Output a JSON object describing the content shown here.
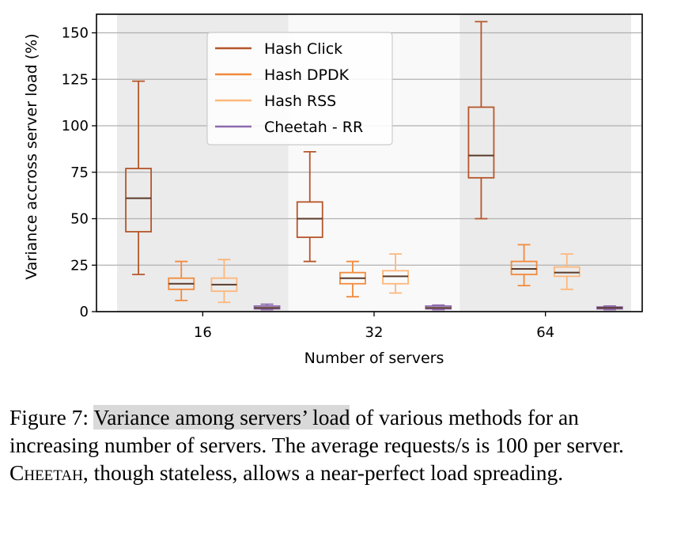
{
  "chart_data": {
    "type": "box",
    "xlabel": "Number of servers",
    "ylabel": "Variance accross server load (%)",
    "categories": [
      "16",
      "32",
      "64"
    ],
    "ylim": [
      0,
      160
    ],
    "yticks": [
      0,
      25,
      50,
      75,
      100,
      125,
      150
    ],
    "grid": "horizontal",
    "legend_position": "top-left",
    "series": [
      {
        "name": "Hash Click",
        "color": "#b5562a",
        "boxes": [
          {
            "min": 20,
            "q1": 43,
            "median": 61,
            "q3": 77,
            "max": 124
          },
          {
            "min": 27,
            "q1": 40,
            "median": 50,
            "q3": 59,
            "max": 86
          },
          {
            "min": 50,
            "q1": 72,
            "median": 84,
            "q3": 110,
            "max": 156
          }
        ]
      },
      {
        "name": "Hash DPDK",
        "color": "#f28a3c",
        "boxes": [
          {
            "min": 6,
            "q1": 12,
            "median": 15,
            "q3": 18,
            "max": 27
          },
          {
            "min": 8,
            "q1": 15,
            "median": 18,
            "q3": 21,
            "max": 27
          },
          {
            "min": 14,
            "q1": 20,
            "median": 23,
            "q3": 27,
            "max": 36
          }
        ]
      },
      {
        "name": "Hash RSS",
        "color": "#fdb77a",
        "boxes": [
          {
            "min": 5,
            "q1": 11,
            "median": 14.5,
            "q3": 18,
            "max": 28
          },
          {
            "min": 10,
            "q1": 15,
            "median": 19,
            "q3": 22,
            "max": 31
          },
          {
            "min": 12,
            "q1": 19,
            "median": 21,
            "q3": 24,
            "max": 31
          }
        ]
      },
      {
        "name": "Cheetah - RR",
        "color": "#8e6aae",
        "boxes": [
          {
            "min": 1,
            "q1": 1.5,
            "median": 2,
            "q3": 3,
            "max": 4
          },
          {
            "min": 1,
            "q1": 1.5,
            "median": 2,
            "q3": 3,
            "max": 3.5
          },
          {
            "min": 1,
            "q1": 1.5,
            "median": 2,
            "q3": 2.5,
            "max": 3
          }
        ]
      }
    ]
  },
  "caption": {
    "prefix": "Figure 7: ",
    "highlight": "Variance among servers’ load",
    "rest1": " of various methods for an increasing number of servers. The average requests/s is 100 per server. ",
    "name_c": "C",
    "name_rest": "heetah",
    "rest2": ", though stateless, allows a near-perfect load spreading."
  },
  "colors": {
    "band": "#ebebeb",
    "grid": "#b0b0b0",
    "median": "#5a3a2a"
  }
}
